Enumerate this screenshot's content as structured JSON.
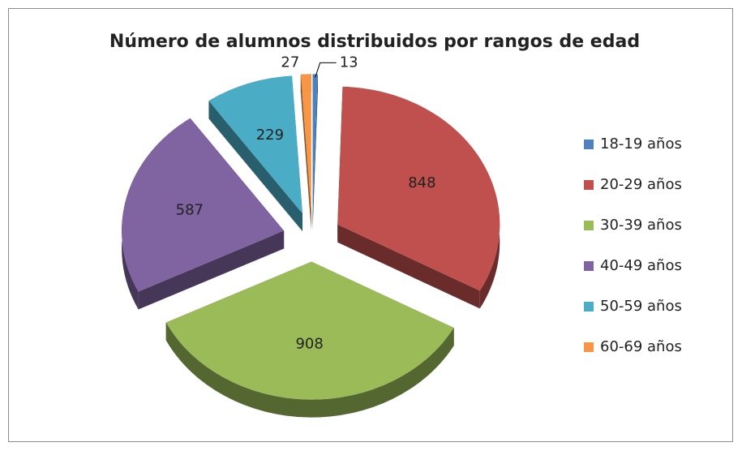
{
  "chart_data": {
    "type": "pie",
    "title": "Número de alumnos distribuidos por rangos de edad",
    "categories": [
      "18-19 años",
      "20-29 años",
      "30-39 años",
      "40-49 años",
      "50-59 años",
      "60-69 años"
    ],
    "values": [
      13,
      848,
      908,
      587,
      229,
      27
    ],
    "colors": [
      "#4f81bd",
      "#c0504d",
      "#9bbb59",
      "#8064a2",
      "#4bacc6",
      "#f79646"
    ],
    "legend": "right"
  }
}
